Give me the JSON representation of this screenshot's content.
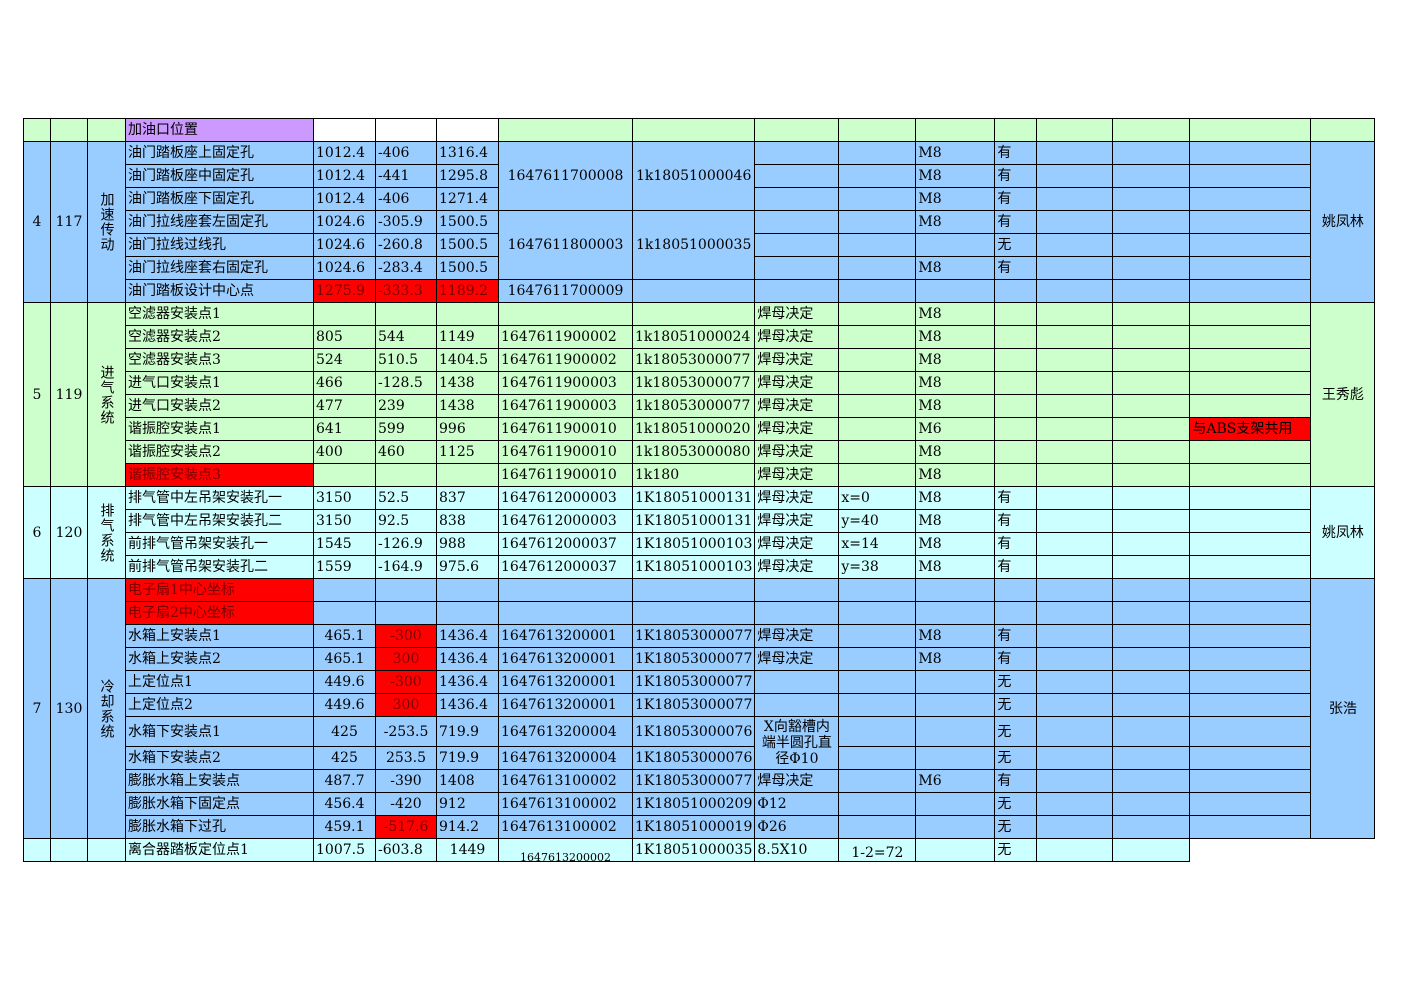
{
  "top_row": {
    "label": "加油口位置"
  },
  "groups": [
    {
      "seq": "4",
      "code": "117",
      "system": "加速传动",
      "owner": "姚凤林",
      "rows": [
        {
          "name": "油门踏板座上固定孔",
          "x": "1012.4",
          "y": "-406",
          "z": "1316.4",
          "part": "1647611700008",
          "nut": "1k18051000046",
          "weld": "",
          "note": "",
          "bolt": "M8",
          "has": "有",
          "remark": ""
        },
        {
          "name": "油门踏板座中固定孔",
          "x": "1012.4",
          "y": "-441",
          "z": "1295.8",
          "bolt": "M8",
          "has": "有"
        },
        {
          "name": "油门踏板座下固定孔",
          "x": "1012.4",
          "y": "-406",
          "z": "1271.4",
          "bolt": "M8",
          "has": "有"
        },
        {
          "name": "油门拉线座套左固定孔",
          "x": "1024.6",
          "y": "-305.9",
          "z": "1500.5",
          "part": "1647611800003",
          "nut": "1k18051000035",
          "bolt": "M8",
          "has": "有"
        },
        {
          "name": "油门拉线过线孔",
          "x": "1024.6",
          "y": "-260.8",
          "z": "1500.5",
          "bolt": "",
          "has": "无"
        },
        {
          "name": "油门拉线座套右固定孔",
          "x": "1024.6",
          "y": "-283.4",
          "z": "1500.5",
          "bolt": "M8",
          "has": "有"
        },
        {
          "name": "油门踏板设计中心点",
          "x": "1275.9",
          "y": "-333.3",
          "z": "1189.2",
          "part": "1647611700009",
          "nut": "",
          "bolt": "",
          "has": ""
        }
      ]
    },
    {
      "seq": "5",
      "code": "119",
      "system": "进气系统",
      "owner": "王秀彪",
      "rows": [
        {
          "name": "空滤器安装点1",
          "x": "",
          "y": "",
          "z": "",
          "part": "",
          "nut": "",
          "weld": "焊母决定",
          "bolt": "M8",
          "has": "",
          "remark": ""
        },
        {
          "name": "空滤器安装点2",
          "x": "805",
          "y": "544",
          "z": "1149",
          "part": "1647611900002",
          "nut": "1k18051000024",
          "weld": "焊母决定",
          "bolt": "M8"
        },
        {
          "name": "空滤器安装点3",
          "x": "524",
          "y": "510.5",
          "z": "1404.5",
          "part": "1647611900002",
          "nut": "1k18053000077",
          "weld": "焊母决定",
          "bolt": "M8"
        },
        {
          "name": "进气口安装点1",
          "x": "466",
          "y": "-128.5",
          "z": "1438",
          "part": "1647611900003",
          "nut": "1k18053000077",
          "weld": "焊母决定",
          "bolt": "M8"
        },
        {
          "name": "进气口安装点2",
          "x": "477",
          "y": "239",
          "z": "1438",
          "part": "1647611900003",
          "nut": "1k18053000077",
          "weld": "焊母决定",
          "bolt": "M8"
        },
        {
          "name": "谐振腔安装点1",
          "x": "641",
          "y": "599",
          "z": "996",
          "part": "1647611900010",
          "nut": "1k18051000020",
          "weld": "焊母决定",
          "bolt": "M6",
          "remark": "与ABS支架共用"
        },
        {
          "name": "谐振腔安装点2",
          "x": "400",
          "y": "460",
          "z": "1125",
          "part": "1647611900010",
          "nut": "1k18053000080",
          "weld": "焊母决定",
          "bolt": "M8"
        },
        {
          "name": "谐振腔安装点3",
          "x": "",
          "y": "",
          "z": "",
          "part": "1647611900010",
          "nut": "1k180",
          "weld": "焊母决定",
          "bolt": "M8"
        }
      ]
    },
    {
      "seq": "6",
      "code": "120",
      "system": "排气系统",
      "owner": "姚凤林",
      "rows": [
        {
          "name": "排气管中左吊架安装孔一",
          "x": "3150",
          "y": "52.5",
          "z": "837",
          "part": "1647612000003",
          "nut": "1K18051000131",
          "weld": "焊母决定",
          "note": "x=0",
          "bolt": "M8",
          "has": "有"
        },
        {
          "name": "排气管中左吊架安装孔二",
          "x": "3150",
          "y": "92.5",
          "z": "838",
          "part": "1647612000003",
          "nut": "1K18051000131",
          "weld": "焊母决定",
          "note": "y=40",
          "bolt": "M8",
          "has": "有"
        },
        {
          "name": "前排气管吊架安装孔一",
          "x": "1545",
          "y": "-126.9",
          "z": "988",
          "part": "1647612000037",
          "nut": "1K18051000103",
          "weld": "焊母决定",
          "note": "x=14",
          "bolt": "M8",
          "has": "有"
        },
        {
          "name": "前排气管吊架安装孔二",
          "x": "1559",
          "y": "-164.9",
          "z": "975.6",
          "part": "1647612000037",
          "nut": "1K18051000103",
          "weld": "焊母决定",
          "note": "y=38",
          "bolt": "M8",
          "has": "有"
        }
      ]
    },
    {
      "seq": "7",
      "code": "130",
      "system": "冷却系统",
      "owner": "张浩",
      "rows": [
        {
          "name": "电子扇1中心坐标"
        },
        {
          "name": "电子扇2中心坐标"
        },
        {
          "name": "水箱上安装点1",
          "x": "465.1",
          "y": "-300",
          "z": "1436.4",
          "part": "1647613200001",
          "nut": "1K18053000077",
          "weld": "焊母决定",
          "bolt": "M8",
          "has": "有"
        },
        {
          "name": "水箱上安装点2",
          "x": "465.1",
          "y": "300",
          "z": "1436.4",
          "part": "1647613200001",
          "nut": "1K18053000077",
          "weld": "焊母决定",
          "bolt": "M8",
          "has": "有"
        },
        {
          "name": "上定位点1",
          "x": "449.6",
          "y": "-300",
          "z": "1436.4",
          "part": "1647613200001",
          "nut": "1K18053000077",
          "has": "无"
        },
        {
          "name": "上定位点2",
          "x": "449.6",
          "y": "300",
          "z": "1436.4",
          "part": "1647613200001",
          "nut": "1K18053000077",
          "has": "无"
        },
        {
          "name": "水箱下安装点1",
          "x": "425",
          "y": "-253.5",
          "z": "719.9",
          "part": "1647613200004",
          "nut": "1K18053000076",
          "weld": "X向豁槽内端半圆孔直径Φ10",
          "has": "无"
        },
        {
          "name": "水箱下安装点2",
          "x": "425",
          "y": "253.5",
          "z": "719.9",
          "part": "1647613200004",
          "nut": "1K18053000076",
          "has": "无"
        },
        {
          "name": "膨胀水箱上安装点",
          "x": "487.7",
          "y": "-390",
          "z": "1408",
          "part": "1647613100002",
          "nut": "1K18053000077",
          "weld": "焊母决定",
          "bolt": "M6",
          "has": "有"
        },
        {
          "name": "膨胀水箱下固定点",
          "x": "456.4",
          "y": "-420",
          "z": "912",
          "part": "1647613100002",
          "nut": "1K18051000209",
          "weld": "Φ12",
          "has": "无"
        },
        {
          "name": "膨胀水箱下过孔",
          "x": "459.1",
          "y": "-517.6",
          "z": "914.2",
          "part": "1647613100002",
          "nut": "1K18051000019",
          "weld": "Φ26",
          "has": "无"
        }
      ]
    }
  ],
  "last_row": {
    "name": "离合器踏板定位点1",
    "x": "1007.5",
    "y": "-603.8",
    "z": "1449",
    "part": "1647613200002",
    "nut": "1K18051000035",
    "weld": "8.5X10",
    "note": "1-2=72",
    "has": "无"
  },
  "colors": {
    "blue": "#99ccff",
    "green": "#ccffcc",
    "cyan": "#ccffff",
    "red": "#ff0000",
    "purple": "#cc99ff"
  }
}
